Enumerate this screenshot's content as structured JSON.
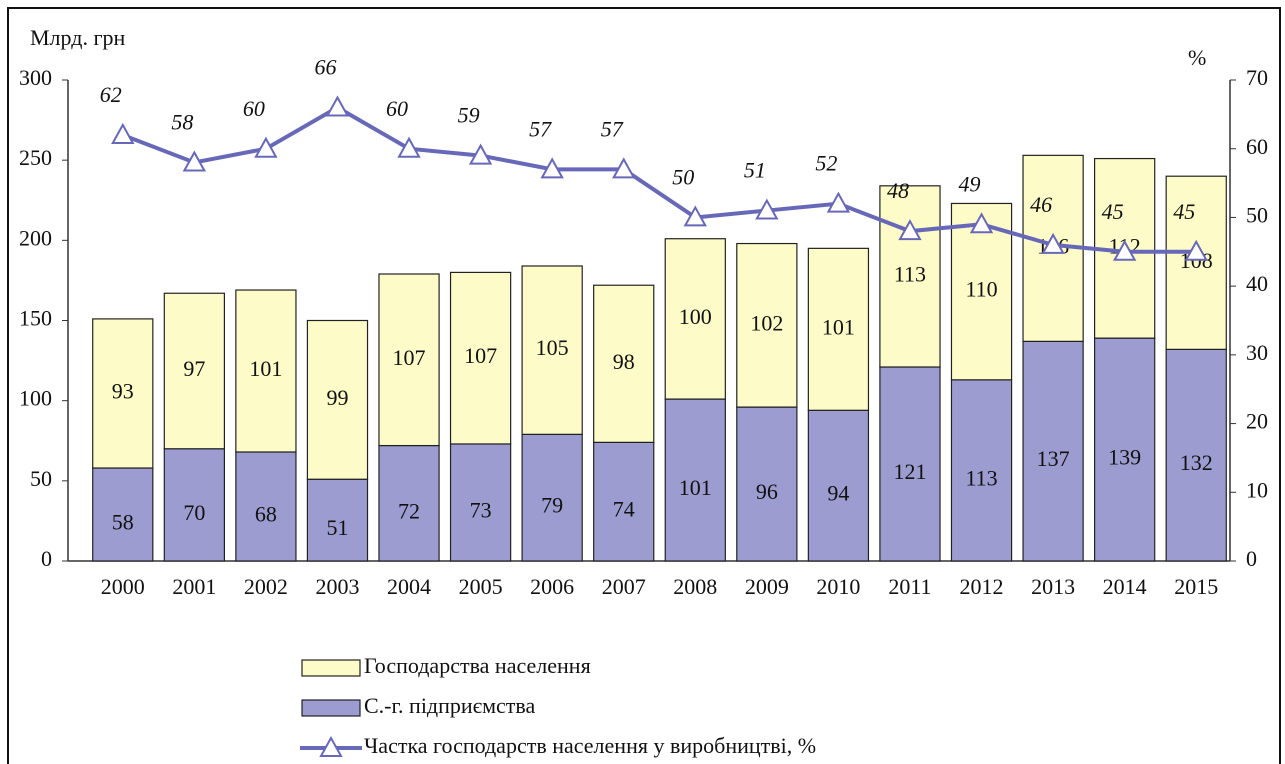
{
  "chart_data": {
    "type": "bar",
    "ylabel": "Млрд. грн",
    "y2label": "%",
    "categories": [
      "2000",
      "2001",
      "2002",
      "2003",
      "2004",
      "2005",
      "2006",
      "2007",
      "2008",
      "2009",
      "2010",
      "2011",
      "2012",
      "2013",
      "2014",
      "2015"
    ],
    "series": [
      {
        "name": "Господарства населення",
        "color": "#fdfcc8",
        "stack": "top",
        "values": [
          93,
          97,
          101,
          99,
          107,
          107,
          105,
          98,
          100,
          102,
          101,
          113,
          110,
          116,
          112,
          108
        ]
      },
      {
        "name": "С.-г. підприємства",
        "color": "#9c9cd0",
        "stack": "bottom",
        "values": [
          58,
          70,
          68,
          51,
          72,
          73,
          79,
          74,
          101,
          96,
          94,
          121,
          113,
          137,
          139,
          132
        ]
      },
      {
        "name": "Частка господарств населення у виробництві, %",
        "color": "#6868b8",
        "type": "line",
        "axis": "y2",
        "values": [
          62,
          58,
          60,
          66,
          60,
          59,
          57,
          57,
          50,
          51,
          52,
          48,
          49,
          46,
          45,
          45
        ]
      }
    ],
    "ylim": [
      0,
      300
    ],
    "yticks": [
      0,
      50,
      100,
      150,
      200,
      250,
      300
    ],
    "y2lim": [
      0,
      70
    ],
    "y2ticks": [
      0,
      10,
      20,
      30,
      40,
      50,
      60,
      70
    ]
  }
}
